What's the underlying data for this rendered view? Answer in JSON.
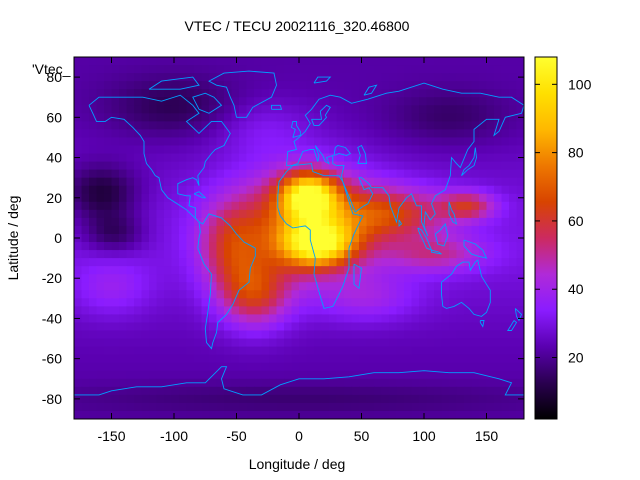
{
  "chart_data": {
    "type": "heatmap",
    "title": "VTEC / TECU 20021116_320.46800",
    "series_label": "'Vtec_",
    "xlabel": "Longitude / deg",
    "ylabel": "Latitude / deg",
    "xlim": [
      -180,
      180
    ],
    "ylim": [
      -90,
      90
    ],
    "x_ticks": [
      -150,
      -100,
      -50,
      0,
      50,
      100,
      150
    ],
    "y_ticks": [
      -80,
      -60,
      -40,
      -20,
      0,
      20,
      40,
      60,
      80
    ],
    "colorbar": {
      "range": [
        2,
        108
      ],
      "ticks": [
        20,
        40,
        60,
        80,
        100
      ],
      "palette": [
        "#000000",
        "#2a0050",
        "#5a00b0",
        "#8a1cff",
        "#b02ad8",
        "#cc2a60",
        "#d84400",
        "#ee7800",
        "#ffb800",
        "#ffe000",
        "#ffff30"
      ]
    },
    "tec_peaks": [
      {
        "lon": 5,
        "lat": 22,
        "value": 105
      },
      {
        "lon": 15,
        "lat": -3,
        "value": 100
      },
      {
        "lon": 80,
        "lat": 10,
        "value": 75
      },
      {
        "lon": 130,
        "lat": 15,
        "value": 68
      },
      {
        "lon": -40,
        "lat": -25,
        "value": 72
      }
    ],
    "tec_minima": [
      {
        "lon": -155,
        "lat": 25,
        "value": 5
      },
      {
        "lon": -150,
        "lat": 5,
        "value": 8
      }
    ],
    "coastline_color": "#00a0ff"
  }
}
